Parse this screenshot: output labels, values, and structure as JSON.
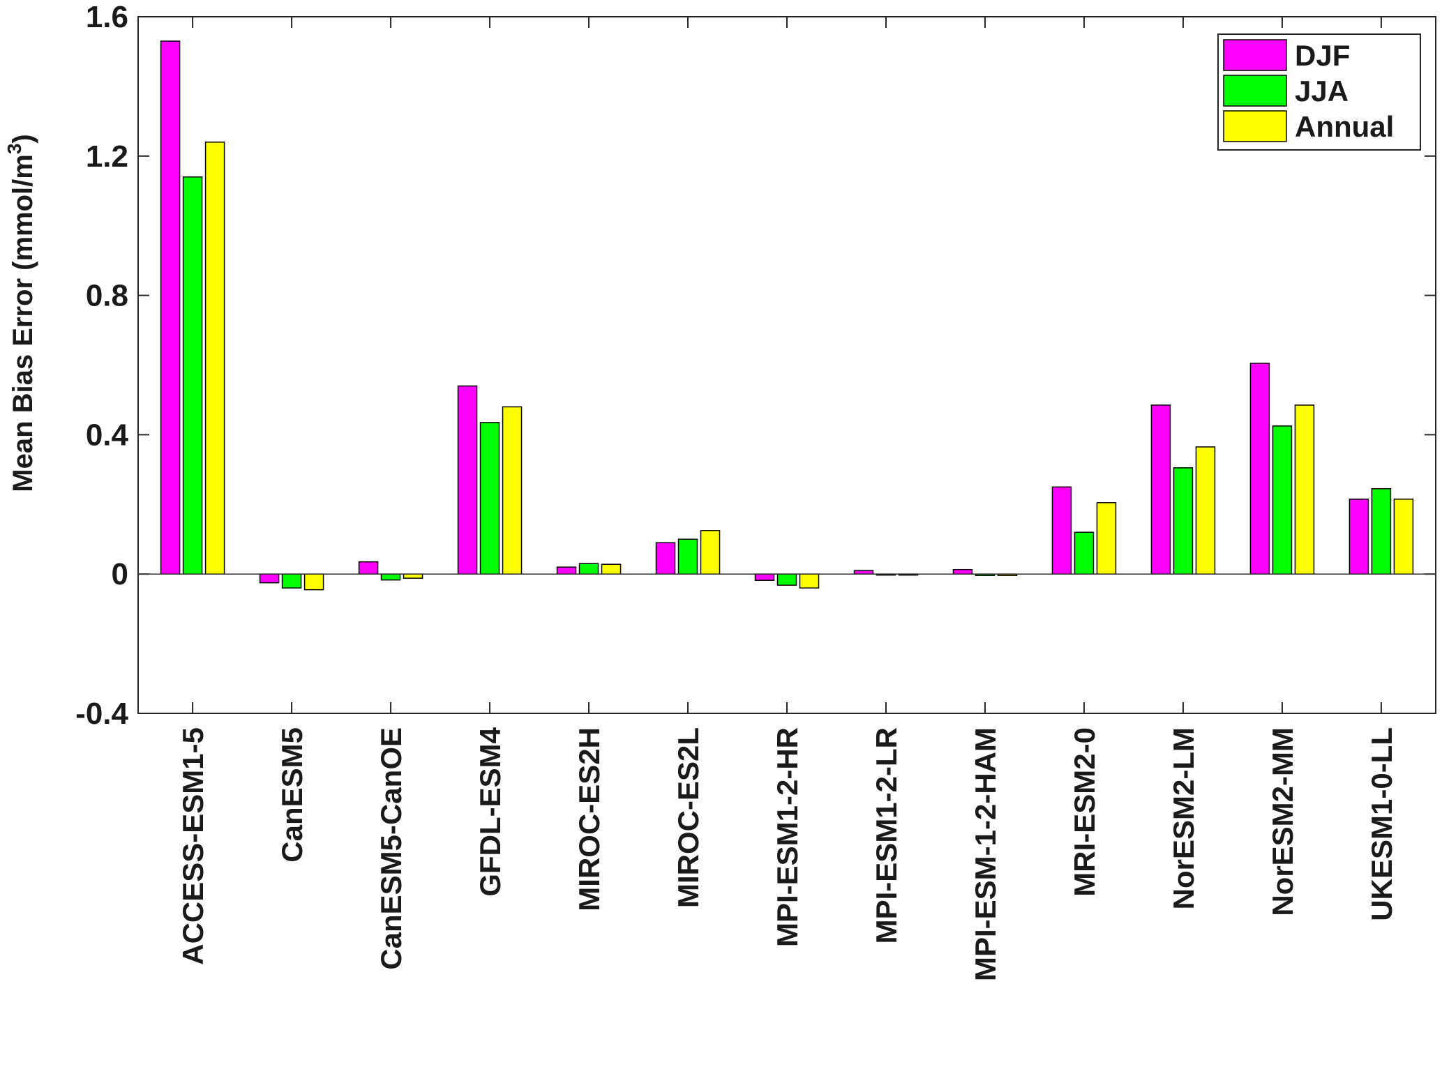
{
  "chart_data": {
    "type": "bar",
    "title": "",
    "xlabel": "",
    "ylabel": "Mean Bias Error (mmol/m",
    "ylabel_sup": "3",
    "ylabel_close": ")",
    "ylim": [
      -0.4,
      1.6
    ],
    "yticks": [
      -0.4,
      0,
      0.4,
      0.8,
      1.2,
      1.6
    ],
    "ytick_labels": [
      "-0.4",
      "0",
      "0.4",
      "0.8",
      "1.2",
      "1.6"
    ],
    "grid": false,
    "legend_position": "top-right",
    "categories": [
      "ACCESS-ESM1-5",
      "CanESM5",
      "CanESM5-CanOE",
      "GFDL-ESM4",
      "MIROC-ES2H",
      "MIROC-ES2L",
      "MPI-ESM1-2-HR",
      "MPI-ESM1-2-LR",
      "MPI-ESM-1-2-HAM",
      "MRI-ESM2-0",
      "NorESM2-LM",
      "NorESM2-MM",
      "UKESM1-0-LL"
    ],
    "series": [
      {
        "name": "DJF",
        "color": "#ff00ff",
        "values": [
          1.53,
          -0.025,
          0.035,
          0.54,
          0.02,
          0.09,
          -0.018,
          0.01,
          0.013,
          0.25,
          0.485,
          0.605,
          0.215
        ]
      },
      {
        "name": "JJA",
        "color": "#00ff00",
        "values": [
          1.14,
          -0.04,
          -0.017,
          0.435,
          0.03,
          0.1,
          -0.032,
          -0.003,
          -0.004,
          0.12,
          0.305,
          0.425,
          0.245
        ]
      },
      {
        "name": "Annual",
        "color": "#ffff00",
        "values": [
          1.24,
          -0.045,
          -0.012,
          0.48,
          0.028,
          0.125,
          -0.04,
          -0.003,
          -0.004,
          0.205,
          0.365,
          0.485,
          0.215
        ]
      }
    ]
  }
}
